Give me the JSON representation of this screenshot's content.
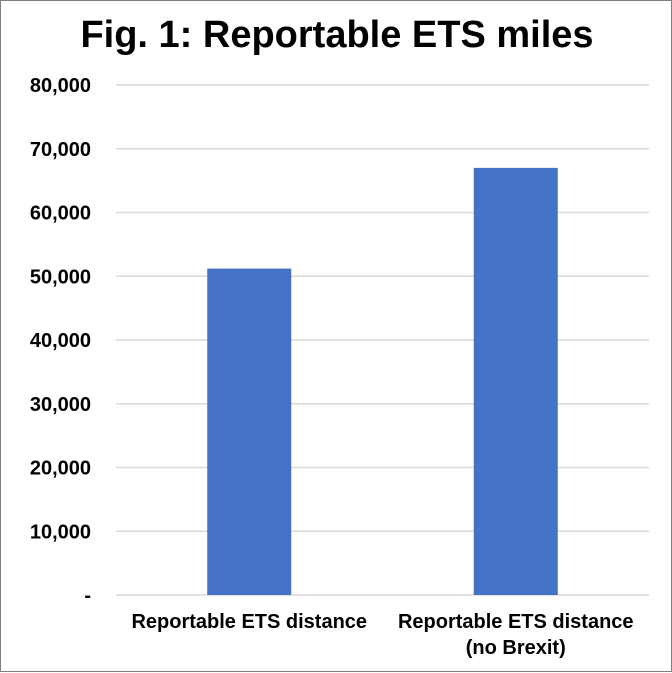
{
  "chart_data": {
    "type": "bar",
    "title": "Fig. 1: Reportable ETS miles",
    "categories": [
      [
        "Reportable ETS distance"
      ],
      [
        "Reportable ETS distance",
        "(no Brexit)"
      ]
    ],
    "values": [
      51200,
      67000
    ],
    "ylim": [
      0,
      80000
    ],
    "yticks": [
      "-",
      "10,000",
      "20,000",
      "30,000",
      "40,000",
      "50,000",
      "60,000",
      "70,000",
      "80,000"
    ],
    "grid": true,
    "legend": "none",
    "colors": {
      "bar": "#4472c4",
      "grid": "#d9d9d9",
      "text": "#000000"
    }
  }
}
